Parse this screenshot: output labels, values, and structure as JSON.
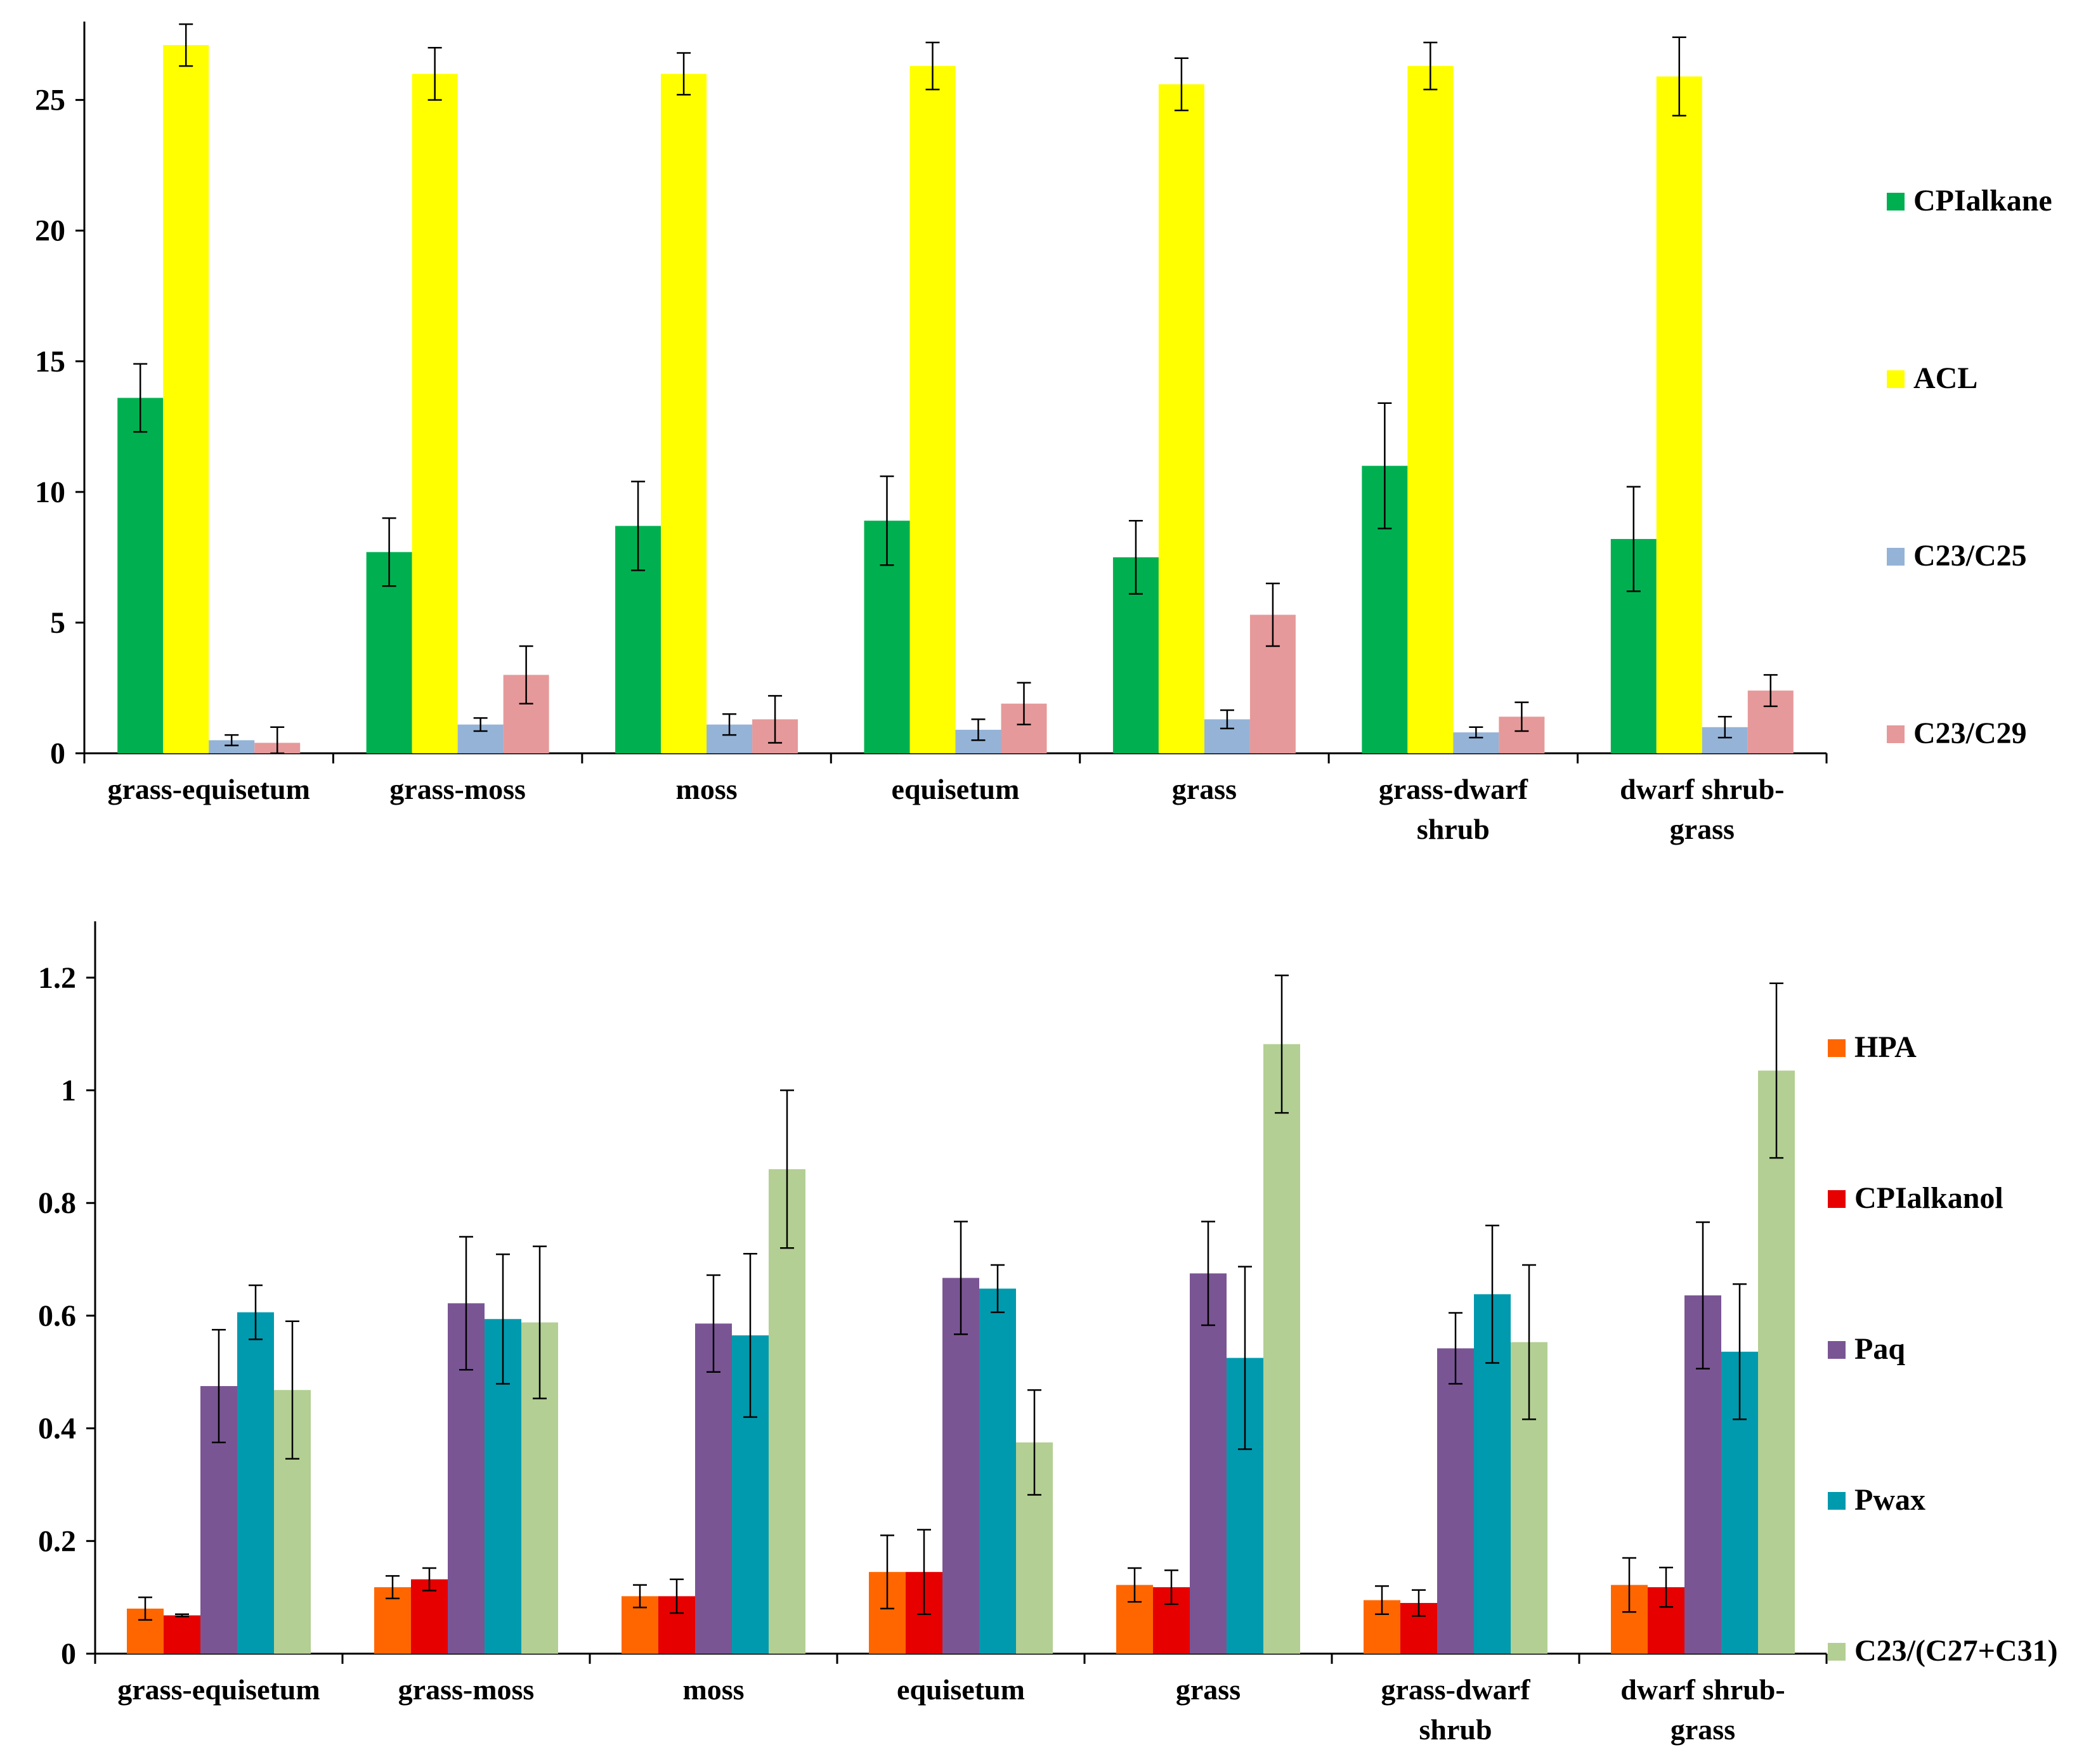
{
  "chart_data": [
    {
      "type": "bar",
      "title": "",
      "xlabel": "",
      "ylabel": "",
      "ylim": [
        0,
        28
      ],
      "yticks": [
        "0",
        "5",
        "10",
        "15",
        "20",
        "25"
      ],
      "ytick_values": [
        0,
        5,
        10,
        15,
        20,
        25
      ],
      "grid": false,
      "legend_position": "right",
      "categories": [
        [
          "grass-equisetum"
        ],
        [
          "grass-moss"
        ],
        [
          "moss"
        ],
        [
          "equisetum"
        ],
        [
          "grass"
        ],
        [
          "grass-dwarf",
          "shrub"
        ],
        [
          "dwarf shrub-",
          "grass"
        ]
      ],
      "series": [
        {
          "name": "CPIalkane",
          "color": "#00b050",
          "values": [
            13.6,
            7.7,
            8.7,
            8.9,
            7.5,
            11.0,
            8.2
          ],
          "errors": [
            1.3,
            1.3,
            1.7,
            1.7,
            1.4,
            2.4,
            2.0
          ]
        },
        {
          "name": "ACL",
          "color": "#ffff00",
          "values": [
            27.1,
            26.0,
            26.0,
            26.3,
            25.6,
            26.3,
            25.9
          ],
          "errors": [
            0.8,
            1.0,
            0.8,
            0.9,
            1.0,
            0.9,
            1.5
          ]
        },
        {
          "name": "C23/C25",
          "color": "#95b3d7",
          "values": [
            0.5,
            1.1,
            1.1,
            0.9,
            1.3,
            0.8,
            1.0
          ],
          "errors": [
            0.2,
            0.25,
            0.4,
            0.4,
            0.35,
            0.2,
            0.4
          ]
        },
        {
          "name": "C23/C29",
          "color": "#e6999a",
          "values": [
            0.4,
            3.0,
            1.3,
            1.9,
            5.3,
            1.4,
            2.4
          ],
          "errors": [
            0.6,
            1.1,
            0.9,
            0.8,
            1.2,
            0.55,
            0.6
          ]
        }
      ]
    },
    {
      "type": "bar",
      "title": "",
      "xlabel": "",
      "ylabel": "",
      "ylim": [
        0,
        1.3
      ],
      "yticks": [
        "0",
        "0.2",
        "0.4",
        "0.6",
        "0.8",
        "1",
        "1.2"
      ],
      "ytick_values": [
        0,
        0.2,
        0.4,
        0.6,
        0.8,
        1.0,
        1.2
      ],
      "grid": false,
      "legend_position": "right",
      "categories": [
        [
          "grass-equisetum"
        ],
        [
          "grass-moss"
        ],
        [
          "moss"
        ],
        [
          "equisetum"
        ],
        [
          "grass"
        ],
        [
          "grass-dwarf",
          "shrub"
        ],
        [
          "dwarf shrub-",
          "grass"
        ]
      ],
      "series": [
        {
          "name": "HPA",
          "color": "#ff6600",
          "values": [
            0.08,
            0.118,
            0.102,
            0.145,
            0.122,
            0.095,
            0.122
          ],
          "errors": [
            0.02,
            0.02,
            0.02,
            0.065,
            0.03,
            0.025,
            0.048
          ]
        },
        {
          "name": "CPIalkanol",
          "color": "#e60000",
          "values": [
            0.068,
            0.132,
            0.102,
            0.145,
            0.118,
            0.09,
            0.118
          ],
          "errors": [
            0.002,
            0.02,
            0.03,
            0.075,
            0.03,
            0.023,
            0.035
          ]
        },
        {
          "name": "Paq",
          "color": "#7a5594",
          "values": [
            0.475,
            0.622,
            0.586,
            0.667,
            0.675,
            0.542,
            0.636
          ],
          "errors": [
            0.1,
            0.118,
            0.086,
            0.1,
            0.092,
            0.063,
            0.13
          ]
        },
        {
          "name": "Pwax",
          "color": "#009aae",
          "values": [
            0.606,
            0.594,
            0.565,
            0.648,
            0.525,
            0.638,
            0.536
          ],
          "errors": [
            0.048,
            0.115,
            0.145,
            0.042,
            0.162,
            0.122,
            0.12
          ]
        },
        {
          "name": "C23/(C27+C31)",
          "color": "#b3cf93",
          "values": [
            0.468,
            0.588,
            0.86,
            0.375,
            1.082,
            0.553,
            1.035
          ],
          "errors": [
            0.122,
            0.135,
            0.14,
            0.093,
            0.122,
            0.137,
            0.155
          ]
        }
      ]
    }
  ]
}
